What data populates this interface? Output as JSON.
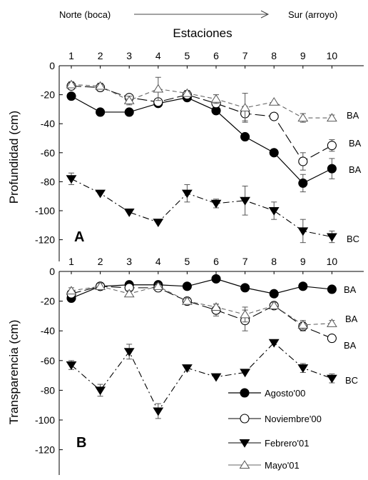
{
  "header": {
    "left": "Norte (boca)",
    "right": "Sur (arroyo)",
    "xlabel": "Estaciones"
  },
  "legend": [
    "Agosto'00",
    "Noviembre'00",
    "Febrero'01",
    "Mayo'01"
  ],
  "chart_data": [
    {
      "type": "line",
      "panel_label": "A",
      "ylabel": "Profundidad (cm)",
      "x": [
        1,
        2,
        3,
        4,
        5,
        6,
        7,
        8,
        9,
        10
      ],
      "ylim": [
        -130,
        0
      ],
      "yticks": [
        0,
        -20,
        -40,
        -60,
        -80,
        -100,
        -120
      ],
      "series": [
        {
          "name": "Agosto'00",
          "values": [
            -21,
            -32,
            -32,
            -26,
            -22,
            -31,
            -49,
            -60,
            -81,
            -71
          ],
          "err": [
            0,
            0,
            0,
            0,
            0,
            0,
            2,
            0,
            6,
            7
          ],
          "group_label": "BA"
        },
        {
          "name": "Noviembre'00",
          "values": [
            -14,
            -15,
            -22,
            -25,
            -20,
            -26,
            -33,
            -35,
            -66,
            -55
          ],
          "err": [
            2,
            0,
            2,
            0,
            0,
            0,
            5,
            0,
            6,
            4
          ],
          "group_label": "BA"
        },
        {
          "name": "Febrero'01",
          "values": [
            -78,
            -88,
            -101,
            -108,
            -88,
            -95,
            -93,
            -100,
            -114,
            -118
          ],
          "err": [
            4,
            0,
            0,
            0,
            6,
            3,
            10,
            6,
            8,
            4
          ],
          "group_label": "BC"
        },
        {
          "name": "Mayo'01",
          "values": [
            -13,
            -14,
            -24,
            -16,
            -19,
            -23,
            -29,
            -25,
            -36,
            -36
          ],
          "err": [
            2,
            2,
            3,
            8,
            2,
            3,
            10,
            0,
            3,
            2
          ],
          "group_label": "BA"
        }
      ]
    },
    {
      "type": "line",
      "panel_label": "B",
      "ylabel": "Transparencia (cm)",
      "x": [
        1,
        2,
        3,
        4,
        5,
        6,
        7,
        8,
        9,
        10
      ],
      "ylim": [
        -135,
        0
      ],
      "yticks": [
        0,
        -20,
        -40,
        -60,
        -80,
        -100,
        -120
      ],
      "series": [
        {
          "name": "Agosto'00",
          "values": [
            -18,
            -10,
            -9,
            -9,
            -10,
            -5,
            -11,
            -15,
            -10,
            -12
          ],
          "err": [
            0,
            0,
            0,
            0,
            0,
            0,
            0,
            0,
            0,
            0
          ],
          "group_label": "BA"
        },
        {
          "name": "Noviembre'00",
          "values": [
            -15,
            -10,
            -11,
            -11,
            -20,
            -26,
            -33,
            -23,
            -37,
            -45
          ],
          "err": [
            0,
            2,
            0,
            0,
            2,
            4,
            7,
            2,
            3,
            2
          ],
          "group_label": "BA"
        },
        {
          "name": "Febrero'01",
          "values": [
            -63,
            -80,
            -54,
            -94,
            -65,
            -71,
            -68,
            -48,
            -65,
            -72
          ],
          "err": [
            3,
            4,
            5,
            5,
            2,
            0,
            0,
            0,
            3,
            3
          ],
          "group_label": "BC"
        },
        {
          "name": "Mayo'01",
          "values": [
            -13,
            -10,
            -15,
            -10,
            -20,
            -24,
            -29,
            -23,
            -36,
            -35
          ],
          "err": [
            2,
            2,
            2,
            2,
            2,
            2,
            5,
            2,
            3,
            2
          ],
          "group_label": "BA"
        }
      ]
    }
  ]
}
